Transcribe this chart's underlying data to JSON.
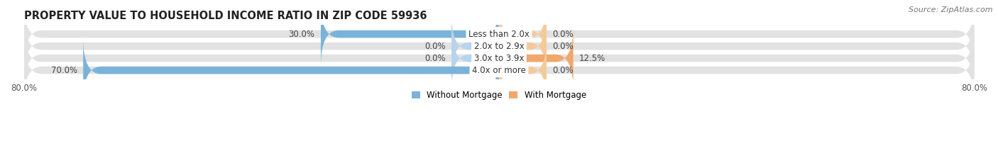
{
  "title": "PROPERTY VALUE TO HOUSEHOLD INCOME RATIO IN ZIP CODE 59936",
  "source": "Source: ZipAtlas.com",
  "categories": [
    "Less than 2.0x",
    "2.0x to 2.9x",
    "3.0x to 3.9x",
    "4.0x or more"
  ],
  "without_mortgage": [
    30.0,
    0.0,
    0.0,
    70.0
  ],
  "with_mortgage": [
    0.0,
    0.0,
    12.5,
    0.0
  ],
  "xlim_left": -80,
  "xlim_right": 80,
  "x_tick_left_label": "80.0%",
  "x_tick_right_label": "80.0%",
  "color_without": "#7ab3d9",
  "color_with": "#f0a86c",
  "color_with_light": "#f5c99a",
  "bar_background": "#e2e2e2",
  "stub_size": 8.0,
  "bar_height": 0.62,
  "label_fontsize": 8.5,
  "title_fontsize": 10.5,
  "source_fontsize": 8,
  "legend_fontsize": 8.5,
  "cat_label_fontsize": 8.5
}
